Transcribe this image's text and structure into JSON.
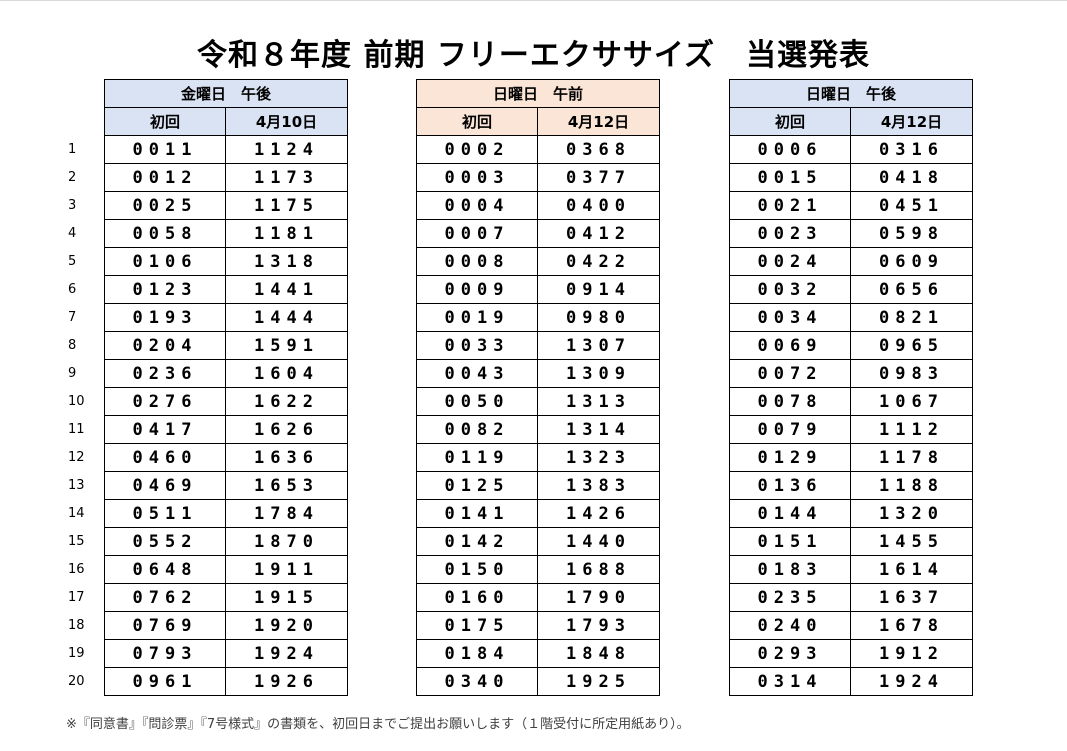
{
  "title": "令和８年度 前期 フリーエクササイズ　当選発表",
  "row_numbers": [
    "1",
    "2",
    "3",
    "4",
    "5",
    "6",
    "7",
    "8",
    "9",
    "10",
    "11",
    "12",
    "13",
    "14",
    "15",
    "16",
    "17",
    "18",
    "19",
    "20"
  ],
  "tables": [
    {
      "header": "金曜日　午後",
      "sub_left": "初回",
      "sub_right": "4月10日",
      "color": "#dae3f3",
      "left": [
        "0011",
        "0012",
        "0025",
        "0058",
        "0106",
        "0123",
        "0193",
        "0204",
        "0236",
        "0276",
        "0417",
        "0460",
        "0469",
        "0511",
        "0552",
        "0648",
        "0762",
        "0769",
        "0793",
        "0961"
      ],
      "right": [
        "1124",
        "1173",
        "1175",
        "1181",
        "1318",
        "1441",
        "1444",
        "1591",
        "1604",
        "1622",
        "1626",
        "1636",
        "1653",
        "1784",
        "1870",
        "1911",
        "1915",
        "1920",
        "1924",
        "1926"
      ]
    },
    {
      "header": "日曜日　午前",
      "sub_left": "初回",
      "sub_right": "4月12日",
      "color": "#fbe5d6",
      "left": [
        "0002",
        "0003",
        "0004",
        "0007",
        "0008",
        "0009",
        "0019",
        "0033",
        "0043",
        "0050",
        "0082",
        "0119",
        "0125",
        "0141",
        "0142",
        "0150",
        "0160",
        "0175",
        "0184",
        "0340"
      ],
      "right": [
        "0368",
        "0377",
        "0400",
        "0412",
        "0422",
        "0914",
        "0980",
        "1307",
        "1309",
        "1313",
        "1314",
        "1323",
        "1383",
        "1426",
        "1440",
        "1688",
        "1790",
        "1793",
        "1848",
        "1925"
      ]
    },
    {
      "header": "日曜日　午後",
      "sub_left": "初回",
      "sub_right": "4月12日",
      "color": "#dae3f3",
      "left": [
        "0006",
        "0015",
        "0021",
        "0023",
        "0024",
        "0032",
        "0034",
        "0069",
        "0072",
        "0078",
        "0079",
        "0129",
        "0136",
        "0144",
        "0151",
        "0183",
        "0235",
        "0240",
        "0293",
        "0314"
      ],
      "right": [
        "0316",
        "0418",
        "0451",
        "0598",
        "0609",
        "0656",
        "0821",
        "0965",
        "0983",
        "1067",
        "1112",
        "1178",
        "1188",
        "1320",
        "1455",
        "1614",
        "1637",
        "1678",
        "1912",
        "1924"
      ]
    }
  ],
  "footnote": "※『同意書』『問診票』『7号様式』の書類を、初回日までご提出お願いします（１階受付に所定用紙あり）。"
}
